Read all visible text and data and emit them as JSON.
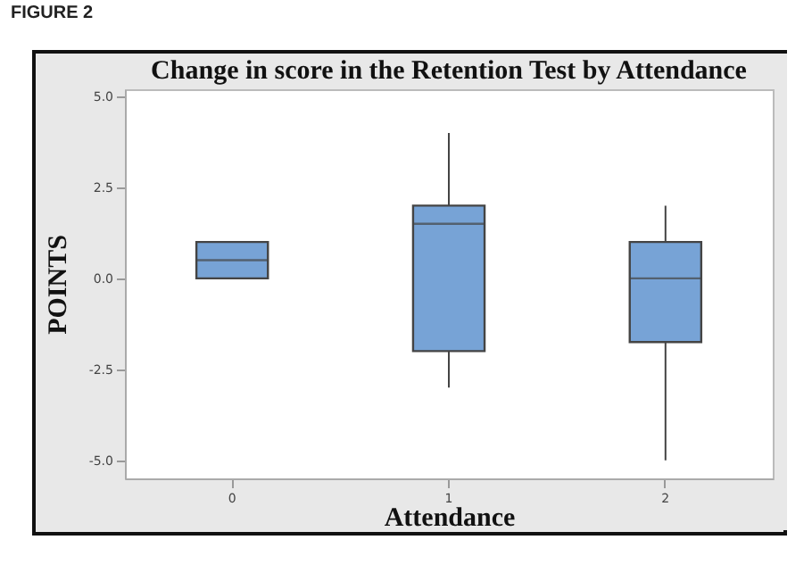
{
  "chart_data": {
    "type": "box",
    "title": "Change in score in the Retention Test by Attendance",
    "xlabel": "Attendance",
    "ylabel": "POINTS",
    "annotations": [
      "FIGURE 2"
    ],
    "categories": [
      "0",
      "1",
      "2"
    ],
    "boxes": [
      {
        "low": 0,
        "q1": 0,
        "median": 0.5,
        "q3": 1,
        "high": 1
      },
      {
        "low": -3,
        "q1": -2,
        "median": 1.5,
        "q3": 2,
        "high": 4
      },
      {
        "low": -5,
        "q1": -1.75,
        "median": 0,
        "q3": 1,
        "high": 2
      }
    ],
    "color": "#77a3d6",
    "ylim": [
      -5.5,
      5.2
    ],
    "yticks": [
      {
        "value": -5,
        "label": "-5.0"
      },
      {
        "value": -2.5,
        "label": "-2.5"
      },
      {
        "value": 0,
        "label": "0.0"
      },
      {
        "value": 2.5,
        "label": "2.5"
      },
      {
        "value": 5,
        "label": "5.0"
      }
    ],
    "grid": false
  }
}
